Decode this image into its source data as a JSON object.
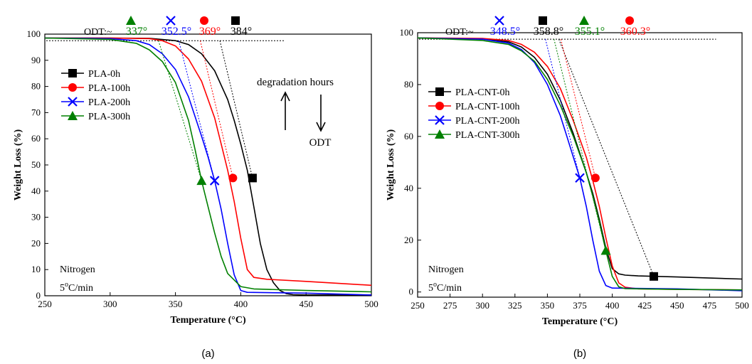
{
  "chart_data": [
    {
      "type": "line",
      "caption": "(a)",
      "xlabel": "Temperature (°C)",
      "ylabel": "Weight Loss (%)",
      "xlim": [
        250,
        500
      ],
      "ylim": [
        0,
        100
      ],
      "xticks": [
        250,
        300,
        350,
        400,
        450,
        500
      ],
      "yticks": [
        0,
        10,
        20,
        30,
        40,
        50,
        60,
        70,
        80,
        90,
        100
      ],
      "grid": false,
      "legend_position": "top-left",
      "odt_prefix": "ODT:~",
      "odt_values": [
        {
          "label": "337°",
          "series": "PLA-300h",
          "x": 337
        },
        {
          "label": "352.5°",
          "series": "PLA-200h",
          "x": 352.5
        },
        {
          "label": "369°",
          "series": "PLA-100h",
          "x": 369
        },
        {
          "label": "384°",
          "series": "PLA-0h",
          "x": 384
        }
      ],
      "reference_line_y": 97.5,
      "annotations": {
        "text1": "degradation hours",
        "text2": "ODT",
        "condition1": "Nitrogen",
        "condition2_pre": "5",
        "condition2_sup": "o",
        "condition2_post": "C/min"
      },
      "series": [
        {
          "name": "PLA-0h",
          "color": "#000000",
          "marker": "square",
          "marker_point": [
            409,
            45
          ],
          "x": [
            250,
            300,
            330,
            350,
            360,
            370,
            380,
            390,
            395,
            400,
            405,
            410,
            415,
            420,
            425,
            430,
            435,
            440,
            450,
            500
          ],
          "y": [
            98.5,
            98.5,
            98.4,
            97.5,
            96.0,
            92.5,
            86.0,
            75.0,
            67.0,
            58.0,
            48.0,
            34.0,
            20.0,
            10.0,
            5.0,
            2.0,
            0.8,
            0.4,
            0.3,
            0.3
          ]
        },
        {
          "name": "PLA-100h",
          "color": "#ff0000",
          "marker": "circle",
          "marker_point": [
            394,
            45
          ],
          "x": [
            250,
            300,
            330,
            340,
            350,
            360,
            370,
            380,
            385,
            390,
            395,
            400,
            405,
            410,
            420,
            450,
            500
          ],
          "y": [
            98.5,
            98.5,
            98.3,
            97.5,
            95.5,
            90.5,
            82.0,
            68.0,
            58.0,
            48.0,
            36.0,
            22.0,
            10.0,
            7.0,
            6.3,
            5.5,
            4.0
          ]
        },
        {
          "name": "PLA-200h",
          "color": "#0000ff",
          "marker": "cross",
          "marker_point": [
            380,
            44
          ],
          "x": [
            250,
            300,
            320,
            330,
            340,
            350,
            360,
            370,
            375,
            380,
            385,
            390,
            395,
            400,
            405,
            450,
            500
          ],
          "y": [
            98.5,
            98.3,
            97.5,
            96.0,
            92.5,
            86.5,
            76.0,
            61.0,
            53.0,
            44.0,
            33.0,
            20.0,
            8.0,
            2.0,
            1.3,
            1.0,
            0.3
          ]
        },
        {
          "name": "PLA-300h",
          "color": "#008000",
          "marker": "triangle",
          "marker_point": [
            370,
            44
          ],
          "x": [
            250,
            300,
            320,
            330,
            340,
            350,
            360,
            365,
            370,
            375,
            380,
            385,
            390,
            400,
            410,
            450,
            500
          ],
          "y": [
            98.5,
            98.0,
            96.5,
            94.0,
            89.5,
            81.5,
            67.0,
            56.0,
            44.0,
            34.0,
            24.0,
            15.0,
            8.5,
            3.5,
            2.6,
            2.0,
            1.5
          ]
        }
      ]
    },
    {
      "type": "line",
      "caption": "(b)",
      "xlabel": "Temperature (°C)",
      "ylabel": "Weight Loss (%)",
      "xlim": [
        250,
        500
      ],
      "ylim": [
        -2,
        100
      ],
      "xticks": [
        250,
        275,
        300,
        325,
        350,
        375,
        400,
        425,
        450,
        475,
        500
      ],
      "yticks": [
        0,
        20,
        40,
        60,
        80,
        100
      ],
      "grid": false,
      "legend_position": "top-left",
      "odt_prefix": "ODT:~",
      "odt_values": [
        {
          "label": "348.5°",
          "series": "PLA-CNT-200h",
          "x": 348.5
        },
        {
          "label": "358.8°",
          "series": "PLA-CNT-0h",
          "x": 358.8
        },
        {
          "label": "355.1°",
          "series": "PLA-CNT-300h",
          "x": 355.1
        },
        {
          "label": "360.3°",
          "series": "PLA-CNT-100h",
          "x": 360.3
        }
      ],
      "reference_line_y": 97.5,
      "annotations": {
        "condition1": "Nitrogen",
        "condition2_pre": "5",
        "condition2_sup": "o",
        "condition2_post": "C/min"
      },
      "series": [
        {
          "name": "PLA-CNT-0h",
          "color": "#000000",
          "marker": "square",
          "marker_point": [
            432,
            6
          ],
          "x": [
            250,
            300,
            320,
            330,
            340,
            350,
            360,
            370,
            380,
            385,
            390,
            395,
            400,
            405,
            410,
            420,
            450,
            500
          ],
          "y": [
            98,
            97.5,
            96.5,
            94.5,
            90.5,
            84.0,
            74.0,
            61.0,
            46.0,
            38.0,
            28.0,
            17.0,
            9.0,
            7.0,
            6.5,
            6.2,
            5.8,
            5.0
          ]
        },
        {
          "name": "PLA-CNT-100h",
          "color": "#ff0000",
          "marker": "circle",
          "marker_point": [
            387,
            44
          ],
          "x": [
            250,
            300,
            320,
            330,
            340,
            350,
            360,
            370,
            380,
            385,
            390,
            395,
            400,
            405,
            410,
            420,
            450,
            500
          ],
          "y": [
            98,
            97.8,
            97.0,
            95.5,
            92.5,
            87.0,
            78.5,
            66.0,
            52.0,
            43.0,
            33.0,
            21.0,
            10.0,
            3.5,
            1.8,
            1.2,
            1.0,
            0.8
          ]
        },
        {
          "name": "PLA-CNT-200h",
          "color": "#0000ff",
          "marker": "cross",
          "marker_point": [
            375,
            44
          ],
          "x": [
            250,
            300,
            320,
            330,
            340,
            350,
            360,
            365,
            370,
            375,
            380,
            385,
            390,
            395,
            400,
            450,
            500
          ],
          "y": [
            98,
            97.5,
            96.0,
            93.5,
            88.5,
            80.0,
            68.0,
            60.0,
            52.0,
            44.0,
            33.0,
            20.0,
            8.0,
            2.5,
            1.5,
            1.2,
            0.5
          ]
        },
        {
          "name": "PLA-CNT-300h",
          "color": "#008000",
          "marker": "triangle",
          "marker_point": [
            395,
            16
          ],
          "x": [
            250,
            300,
            320,
            330,
            340,
            350,
            360,
            370,
            380,
            385,
            390,
            395,
            400,
            405,
            410,
            450,
            500
          ],
          "y": [
            98,
            97.0,
            95.5,
            93.0,
            89.0,
            82.0,
            72.0,
            60.0,
            46.0,
            37.0,
            27.0,
            16.0,
            6.0,
            2.0,
            1.3,
            1.0,
            0.8
          ]
        }
      ]
    }
  ]
}
